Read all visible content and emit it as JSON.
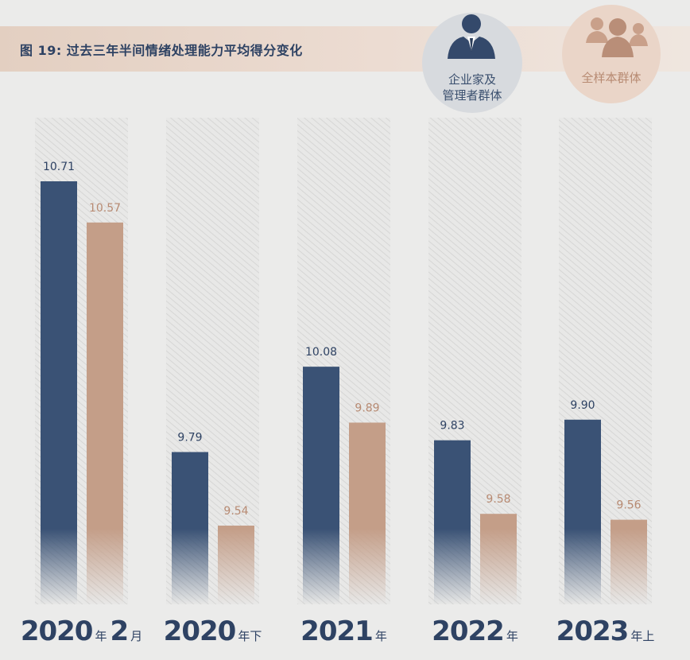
{
  "title": "图 19: 过去三年半间情绪处理能力平均得分变化",
  "legend": {
    "exec": {
      "label": "企业家及\n管理者群体",
      "icon": "businessman-icon",
      "color": "#3a5275"
    },
    "all": {
      "label": "全样本群体",
      "icon": "group-icon",
      "color": "#c49e88"
    }
  },
  "chart_data": {
    "type": "bar",
    "title": "图 19: 过去三年半间情绪处理能力平均得分变化",
    "categories": [
      {
        "year": "2020",
        "suffix": "年 2 月",
        "bold_part": "2",
        "unit": "月"
      },
      {
        "year": "2020",
        "suffix": "年下"
      },
      {
        "year": "2021",
        "suffix": "年"
      },
      {
        "year": "2022",
        "suffix": "年"
      },
      {
        "year": "2023",
        "suffix": "年上"
      }
    ],
    "series": [
      {
        "name": "企业家及管理者群体",
        "color": "#3a5275",
        "label_color": "#2e4263",
        "values": [
          10.71,
          9.79,
          10.08,
          9.83,
          9.9
        ]
      },
      {
        "name": "全样本群体",
        "color": "#c49e88",
        "label_color": "#b78a72",
        "values": [
          10.57,
          9.54,
          9.89,
          9.58,
          9.56
        ]
      }
    ],
    "value_labels": [
      [
        "10.71",
        "9.79",
        "10.08",
        "9.83",
        "9.90"
      ],
      [
        "10.57",
        "9.54",
        "9.89",
        "9.58",
        "9.56"
      ]
    ]
  }
}
